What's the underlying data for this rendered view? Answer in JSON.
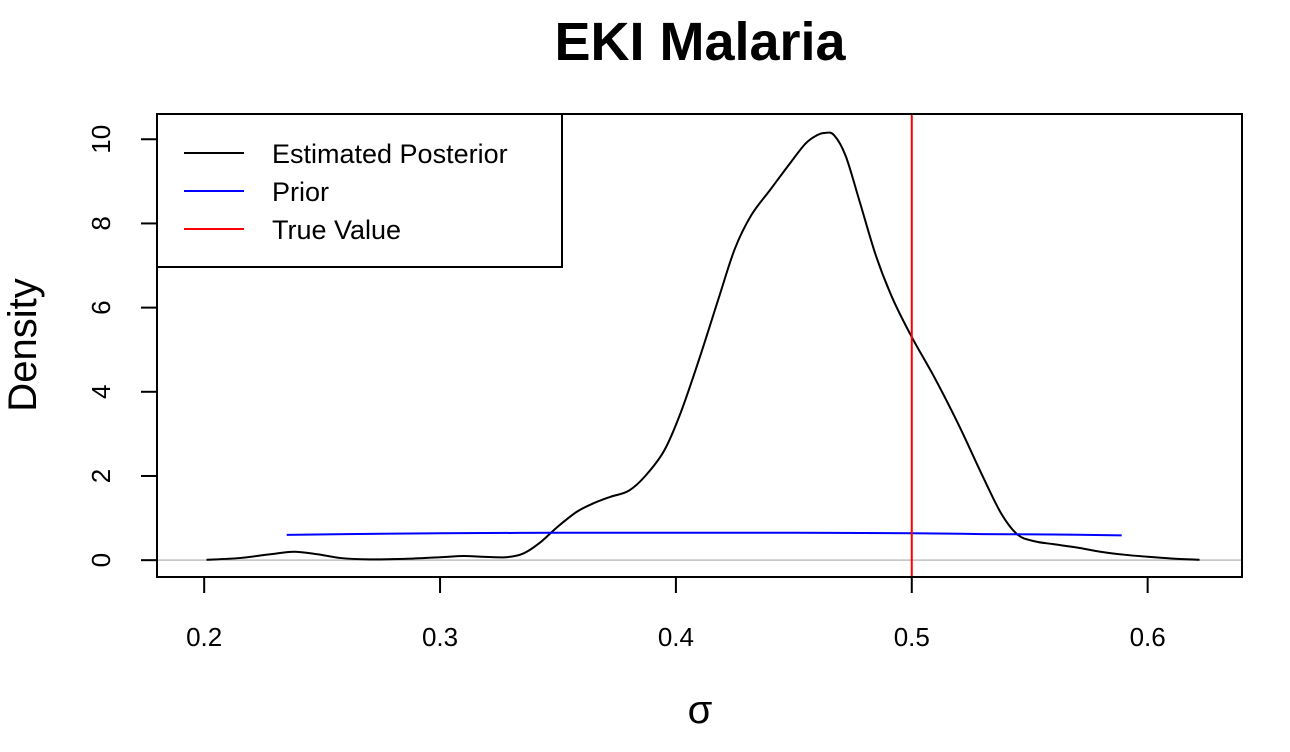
{
  "chart_data": {
    "type": "line",
    "title": "EKI Malaria",
    "xlabel": "σ",
    "ylabel": "Density",
    "xlim": [
      0.18,
      0.64
    ],
    "ylim": [
      -0.4,
      10.6
    ],
    "x_ticks": [
      0.2,
      0.3,
      0.4,
      0.5,
      0.6
    ],
    "x_tick_labels": [
      "0.2",
      "0.3",
      "0.4",
      "0.5",
      "0.6"
    ],
    "y_ticks": [
      0,
      2,
      4,
      6,
      8,
      10
    ],
    "y_tick_labels": [
      "0",
      "2",
      "4",
      "6",
      "8",
      "10"
    ],
    "grid": false,
    "legend_position": "top-left",
    "series": [
      {
        "name": "Estimated Posterior",
        "color": "#000000",
        "x": [
          0.201,
          0.215,
          0.228,
          0.238,
          0.248,
          0.258,
          0.27,
          0.285,
          0.3,
          0.31,
          0.318,
          0.328,
          0.335,
          0.342,
          0.35,
          0.358,
          0.365,
          0.372,
          0.38,
          0.387,
          0.395,
          0.402,
          0.41,
          0.418,
          0.425,
          0.432,
          0.44,
          0.448,
          0.455,
          0.46,
          0.463,
          0.467,
          0.472,
          0.478,
          0.485,
          0.492,
          0.5,
          0.51,
          0.52,
          0.53,
          0.538,
          0.545,
          0.552,
          0.56,
          0.57,
          0.58,
          0.59,
          0.6,
          0.61,
          0.622
        ],
        "y": [
          0.01,
          0.05,
          0.14,
          0.2,
          0.14,
          0.05,
          0.02,
          0.03,
          0.07,
          0.1,
          0.08,
          0.07,
          0.15,
          0.4,
          0.8,
          1.15,
          1.35,
          1.5,
          1.65,
          2.0,
          2.6,
          3.5,
          4.8,
          6.2,
          7.4,
          8.2,
          8.8,
          9.4,
          9.9,
          10.1,
          10.15,
          10.1,
          9.6,
          8.5,
          7.2,
          6.2,
          5.3,
          4.3,
          3.2,
          2.0,
          1.1,
          0.6,
          0.45,
          0.38,
          0.3,
          0.2,
          0.13,
          0.08,
          0.04,
          0.01
        ]
      },
      {
        "name": "Prior",
        "color": "#0000ff",
        "x": [
          0.235,
          0.26,
          0.3,
          0.35,
          0.4,
          0.45,
          0.5,
          0.53,
          0.56,
          0.589
        ],
        "y": [
          0.6,
          0.62,
          0.64,
          0.65,
          0.65,
          0.65,
          0.64,
          0.62,
          0.61,
          0.59
        ]
      },
      {
        "name": "True Value",
        "color": "#ff0000",
        "vline_x": 0.5
      }
    ],
    "baseline": {
      "y": 0,
      "color": "#bebebe"
    }
  }
}
